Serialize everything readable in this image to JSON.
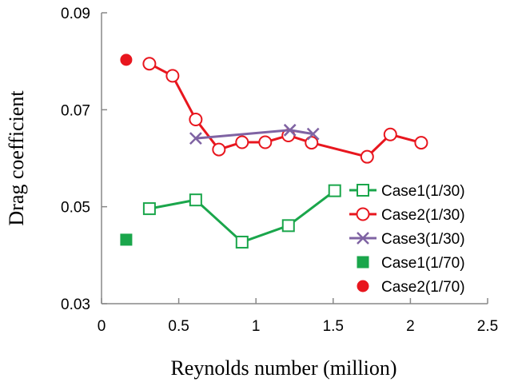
{
  "chart_data": {
    "type": "line",
    "xlabel": "Reynolds number (million)",
    "ylabel": "Drag coefficient",
    "xlim": [
      0,
      2.5
    ],
    "ylim": [
      0.03,
      0.09
    ],
    "xticks": [
      0,
      0.5,
      1,
      1.5,
      2,
      2.5
    ],
    "xtick_labels": [
      "0",
      "0.5",
      "1",
      "1.5",
      "2",
      "2.5"
    ],
    "yticks": [
      0.03,
      0.05,
      0.07,
      0.09
    ],
    "ytick_labels": [
      "0.03",
      "0.05",
      "0.07",
      "0.09"
    ],
    "grid": false,
    "legend_position": "right",
    "series": [
      {
        "name": "Case1(1/30)",
        "color": "#1aa64b",
        "marker": "open-square",
        "line": true,
        "x": [
          0.31,
          0.61,
          0.91,
          1.21,
          1.51
        ],
        "y": [
          0.0496,
          0.0514,
          0.0427,
          0.0461,
          0.0533
        ]
      },
      {
        "name": "Case2(1/30)",
        "color": "#e8161e",
        "marker": "open-circle",
        "line": true,
        "x": [
          0.31,
          0.46,
          0.61,
          0.76,
          0.91,
          1.06,
          1.21,
          1.36,
          1.72,
          1.87,
          2.07
        ],
        "y": [
          0.0795,
          0.077,
          0.068,
          0.0618,
          0.0633,
          0.0633,
          0.0647,
          0.0632,
          0.0603,
          0.0649,
          0.0632
        ]
      },
      {
        "name": "Case3(1/30)",
        "color": "#7f63a3",
        "marker": "x",
        "line": true,
        "x": [
          0.61,
          1.22,
          1.37
        ],
        "y": [
          0.0641,
          0.0658,
          0.065
        ]
      },
      {
        "name": "Case1(1/70)",
        "color": "#1aa64b",
        "marker": "filled-square",
        "line": false,
        "x": [
          0.16
        ],
        "y": [
          0.0432
        ]
      },
      {
        "name": "Case2(1/70)",
        "color": "#e8161e",
        "marker": "filled-circle",
        "line": false,
        "x": [
          0.16
        ],
        "y": [
          0.0803
        ]
      }
    ]
  }
}
